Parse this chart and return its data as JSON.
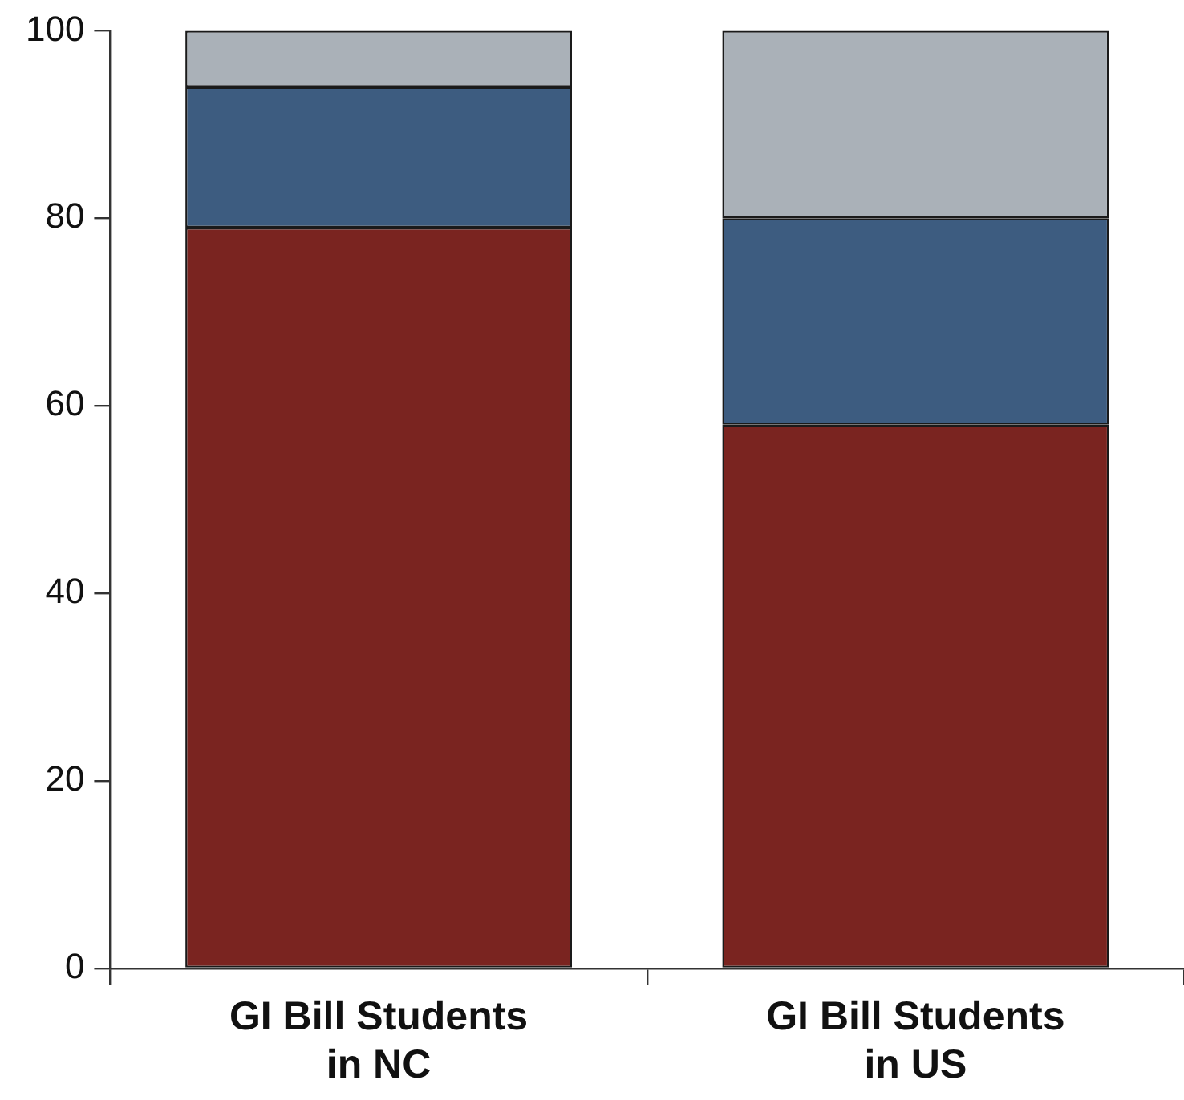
{
  "chart_data": {
    "type": "bar",
    "stacked": true,
    "categories": [
      "GI Bill Students\nin NC",
      "GI Bill Students\nin US"
    ],
    "series": [
      {
        "color": "#7a2420",
        "values": [
          79,
          58
        ]
      },
      {
        "color": "#3d5c80",
        "values": [
          15,
          22
        ]
      },
      {
        "color": "#aab1b8",
        "values": [
          6,
          20
        ]
      }
    ],
    "ylim": [
      0,
      100
    ],
    "yticks": [
      0,
      20,
      40,
      60,
      80,
      100
    ],
    "grid": false,
    "legend": false
  }
}
